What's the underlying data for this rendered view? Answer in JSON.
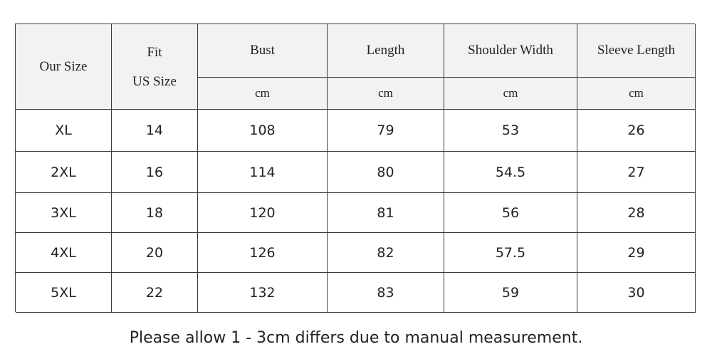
{
  "table": {
    "columns": [
      "Our Size",
      [
        "Fit",
        "US Size"
      ],
      "Bust",
      "Length",
      "Shoulder Width",
      "Sleeve Length"
    ],
    "units": [
      "cm",
      "cm",
      "cm",
      "cm"
    ],
    "rows": [
      [
        "XL",
        "14",
        "108",
        "79",
        "53",
        "26"
      ],
      [
        "2XL",
        "16",
        "114",
        "80",
        "54.5",
        "27"
      ],
      [
        "3XL",
        "18",
        "120",
        "81",
        "56",
        "28"
      ],
      [
        "4XL",
        "20",
        "126",
        "82",
        "57.5",
        "29"
      ],
      [
        "5XL",
        "22",
        "132",
        "83",
        "59",
        "30"
      ]
    ]
  },
  "note": "Please allow 1 - 3cm differs due to manual measurement."
}
